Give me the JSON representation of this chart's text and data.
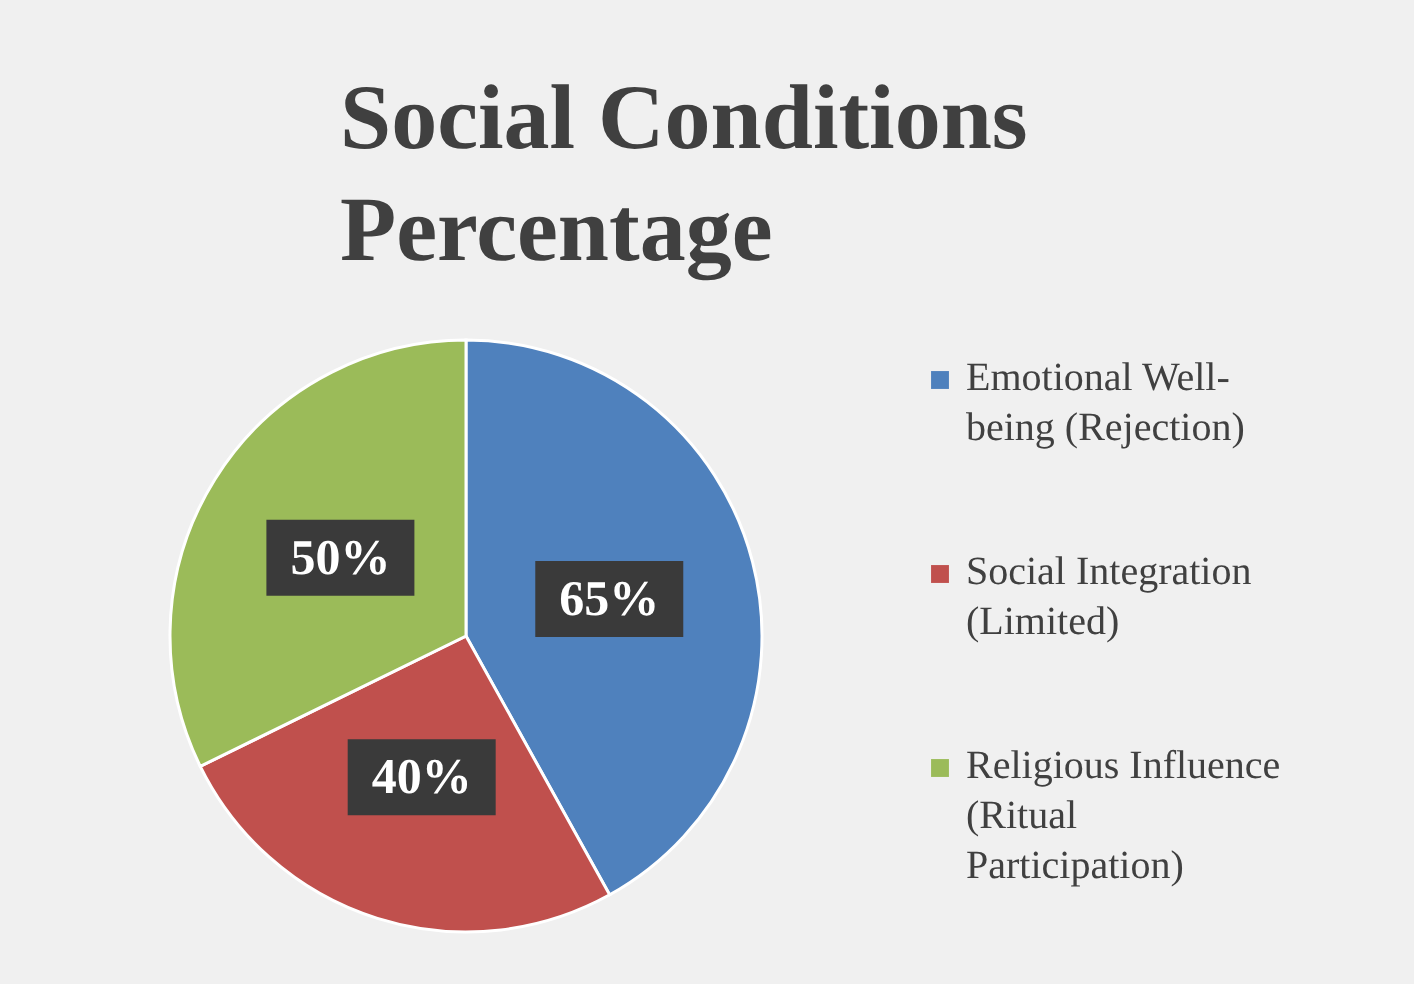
{
  "chart_data": {
    "type": "pie",
    "title": "Social Conditions Percentage",
    "categories": [
      "Emotional Well-being (Rejection)",
      "Social Integration (Limited)",
      "Religious Influence (Ritual Participation)"
    ],
    "values": [
      65,
      40,
      50
    ],
    "colors": [
      "#4f81bd",
      "#c0504d",
      "#9bbb59"
    ],
    "value_labels": [
      "65%",
      "40%",
      "50%"
    ],
    "legend": "right"
  }
}
